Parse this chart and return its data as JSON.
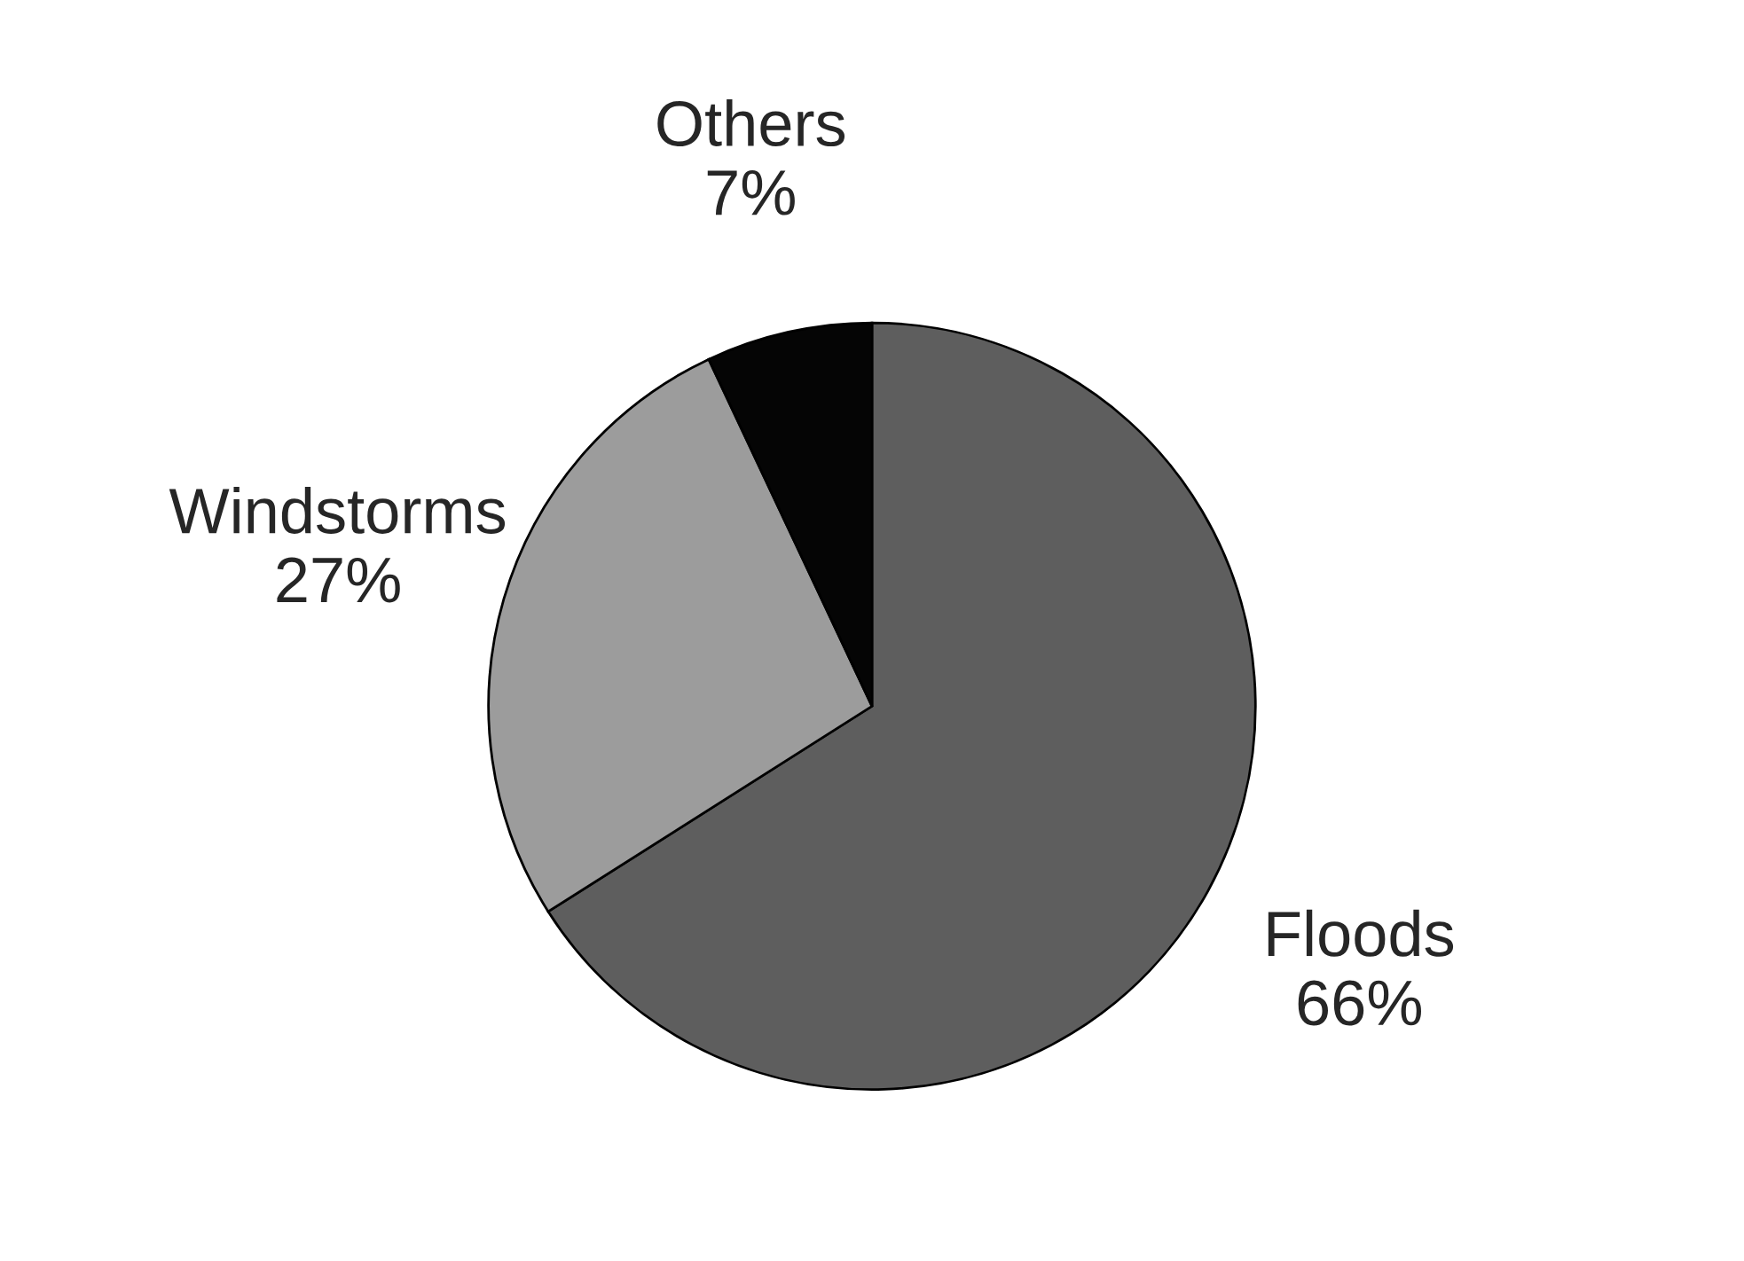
{
  "chart_data": {
    "type": "pie",
    "categories": [
      "Floods",
      "Windstorms",
      "Others"
    ],
    "values": [
      66,
      27,
      7
    ],
    "value_labels": [
      "66%",
      "27%",
      "7%"
    ],
    "colors": [
      "#5e5e5e",
      "#9c9c9c",
      "#050505"
    ]
  }
}
